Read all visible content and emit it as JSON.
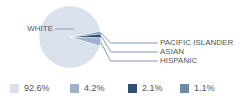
{
  "chart_data": {
    "type": "pie",
    "categories": [
      "WHITE",
      "HISPANIC",
      "ASIAN",
      "PACIFIC ISLANDER"
    ],
    "values": [
      92.6,
      4.2,
      2.1,
      1.1
    ],
    "value_labels": [
      "92.6%",
      "4.2%",
      "2.1%",
      "1.1%"
    ],
    "colors": [
      "#d9e1ec",
      "#9fb1c8",
      "#2f5077",
      "#6f8aa7"
    ]
  }
}
